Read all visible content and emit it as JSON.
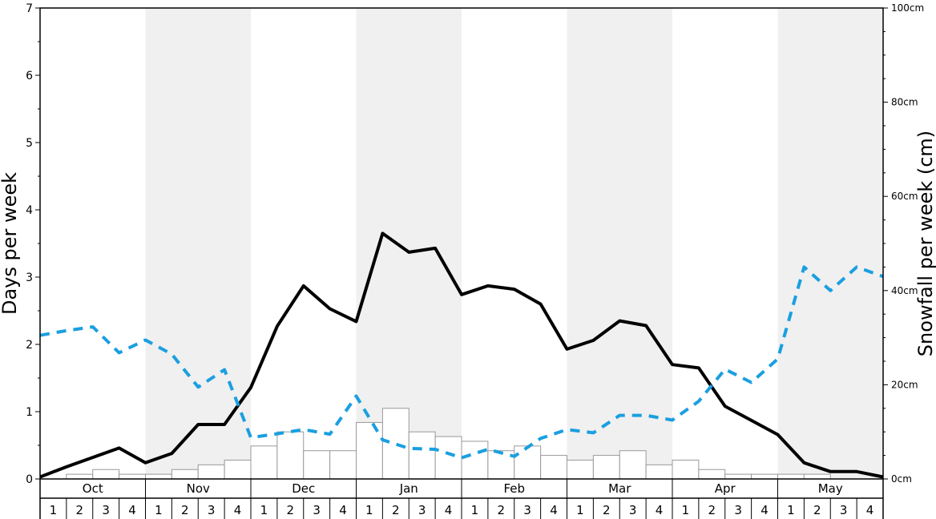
{
  "chart_data": {
    "type": "bar",
    "left_axis": {
      "label": "Days per week",
      "ylim": [
        0,
        7
      ],
      "ticks": [
        "0",
        "1",
        "2",
        "3",
        "4",
        "5",
        "6",
        "7"
      ]
    },
    "right_axis": {
      "label": "Snowfall per week (cm)",
      "ylim": [
        0,
        100
      ],
      "ticks": [
        "0cm",
        "20cm",
        "40cm",
        "60cm",
        "80cm",
        "100cm"
      ]
    },
    "months": [
      "Oct",
      "Nov",
      "Dec",
      "Jan",
      "Feb",
      "Mar",
      "Apr",
      "May"
    ],
    "week_labels": [
      "1",
      "2",
      "3",
      "4"
    ],
    "shaded_months": [
      "Nov",
      "Jan",
      "Mar",
      "May"
    ],
    "categories": [
      "Oct 1",
      "Oct 2",
      "Oct 3",
      "Oct 4",
      "Nov 1",
      "Nov 2",
      "Nov 3",
      "Nov 4",
      "Dec 1",
      "Dec 2",
      "Dec 3",
      "Dec 4",
      "Jan 1",
      "Jan 2",
      "Jan 3",
      "Jan 4",
      "Feb 1",
      "Feb 2",
      "Feb 3",
      "Feb 4",
      "Mar 1",
      "Mar 2",
      "Mar 3",
      "Mar 4",
      "Apr 1",
      "Apr 2",
      "Apr 3",
      "Apr 4",
      "May 1",
      "May 2",
      "May 3",
      "May 4"
    ],
    "series": [
      {
        "style": "bar",
        "axis": "right",
        "color": "#ffffff",
        "stroke": "#999999",
        "values": [
          0,
          1,
          2,
          1,
          1,
          2,
          3,
          4,
          7,
          10,
          6,
          6,
          12,
          15,
          10,
          9,
          8,
          6,
          7,
          5,
          4,
          5,
          6,
          3,
          4,
          2,
          1,
          1,
          1,
          1,
          0,
          0
        ]
      },
      {
        "style": "line",
        "axis": "left",
        "color": "#000000",
        "dashed": false,
        "x": [
          0,
          1,
          2,
          3,
          4,
          5,
          6,
          7,
          8,
          9,
          10,
          11,
          12,
          13,
          14,
          15,
          16,
          17,
          18,
          19,
          20,
          21,
          22,
          23,
          24,
          25,
          26,
          27,
          28,
          29,
          30,
          31,
          32
        ],
        "values": [
          0.03,
          0.18,
          0.32,
          0.46,
          0.24,
          0.38,
          0.81,
          0.81,
          1.36,
          2.27,
          2.87,
          2.53,
          2.34,
          3.65,
          3.37,
          3.43,
          2.74,
          2.87,
          2.82,
          2.6,
          1.93,
          2.06,
          2.35,
          2.28,
          1.7,
          1.65,
          1.08,
          0.87,
          0.66,
          0.24,
          0.11,
          0.11,
          0.03
        ]
      },
      {
        "style": "line",
        "axis": "right",
        "color": "#1a9fe0",
        "dashed": true,
        "x": [
          0,
          1,
          2,
          3,
          4,
          5,
          6,
          7,
          8,
          9,
          10,
          11,
          12,
          13,
          14,
          15,
          16,
          17,
          18,
          19,
          20,
          21,
          22,
          23,
          24,
          25,
          26,
          27,
          28,
          29,
          30,
          31,
          32
        ],
        "values": [
          30.5,
          31.5,
          32.3,
          26.8,
          29.5,
          26.5,
          19.5,
          23.2,
          8.8,
          9.6,
          10.5,
          9.5,
          17.6,
          8.3,
          6.5,
          6.3,
          4.5,
          6.3,
          4.8,
          8.6,
          10.5,
          9.8,
          13.5,
          13.5,
          12.5,
          16.5,
          23.3,
          20.5,
          25.5,
          45,
          40,
          45,
          43
        ]
      }
    ],
    "grid": false,
    "legend": "none"
  }
}
